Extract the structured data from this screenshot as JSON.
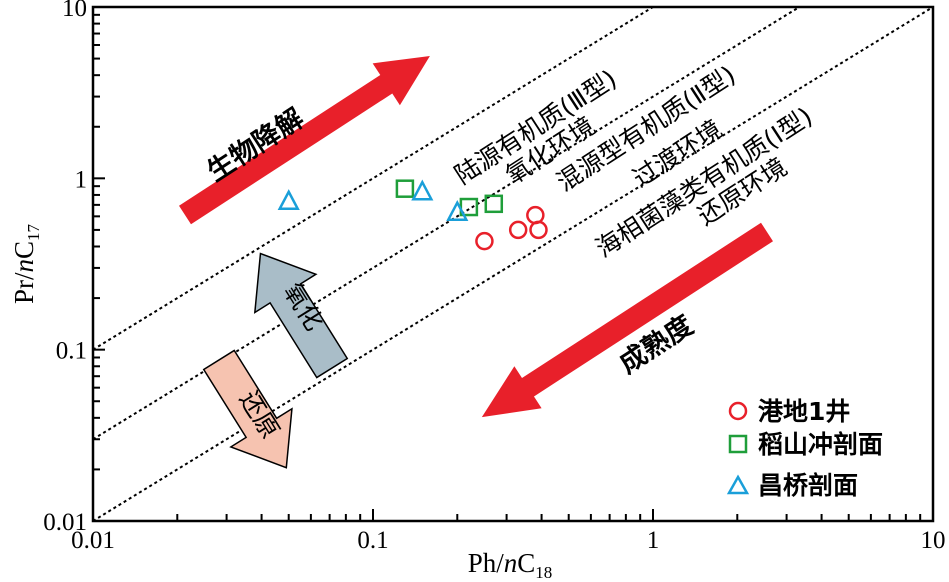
{
  "chart_data": {
    "type": "scatter",
    "xscale": "log",
    "yscale": "log",
    "xlim": [
      0.01,
      10
    ],
    "ylim": [
      0.01,
      10
    ],
    "xlabel": {
      "main": "Ph/",
      "ital": "n",
      "rest": "C",
      "sub": "18"
    },
    "ylabel": {
      "main": "Pr/",
      "ital": "n",
      "rest": "C",
      "sub": "17"
    },
    "x_ticks": [
      {
        "value": 0.01,
        "label": "0.01"
      },
      {
        "value": 0.1,
        "label": "0.1"
      },
      {
        "value": 1,
        "label": "1"
      },
      {
        "value": 10,
        "label": "10"
      }
    ],
    "y_ticks": [
      {
        "value": 0.01,
        "label": "0.01"
      },
      {
        "value": 0.1,
        "label": "0.1"
      },
      {
        "value": 1,
        "label": "1"
      },
      {
        "value": 10,
        "label": "10"
      }
    ],
    "grid": false,
    "legend_position": "bottom-right",
    "series": [
      {
        "name": "港地1井",
        "marker": "circle",
        "color": "#e8202a",
        "x": [
          0.25,
          0.33,
          0.38,
          0.39
        ],
        "y": [
          0.43,
          0.5,
          0.61,
          0.5
        ]
      },
      {
        "name": "稻山冲剖面",
        "marker": "square",
        "color": "#1f9e3a",
        "x": [
          0.13,
          0.22,
          0.27
        ],
        "y": [
          0.87,
          0.68,
          0.71
        ]
      },
      {
        "name": "昌桥剖面",
        "marker": "triangle",
        "color": "#1a9fd9",
        "x": [
          0.05,
          0.15,
          0.2
        ],
        "y": [
          0.73,
          0.83,
          0.63
        ]
      }
    ],
    "boundary_lines": [
      {
        "name": "upper-boundary",
        "points": [
          [
            0.01,
            0.1
          ],
          [
            10,
            100
          ]
        ]
      },
      {
        "name": "middle-boundary",
        "points": [
          [
            0.01,
            0.03
          ],
          [
            10,
            30
          ]
        ]
      },
      {
        "name": "lower-boundary",
        "points": [
          [
            0.01,
            0.01
          ],
          [
            10,
            10
          ]
        ]
      }
    ],
    "annotations": {
      "biodegradation": "生物降解",
      "terrestrial": "陆源有机质(Ⅲ型)",
      "oxidizing_env": "氧化环境",
      "mixed": "混源型有机质(Ⅱ型)",
      "transition_env": "过渡环境",
      "marine": "海相菌藻类有机质(Ⅰ型)",
      "reducing_env": "还原环境",
      "maturity": "成熟度",
      "oxidation_arrow": "氧化",
      "reduction_arrow": "还原"
    },
    "colors": {
      "red_arrow": "#e8202a",
      "oxidation_arrow_fill": "#a9bdc8",
      "reduction_arrow_fill": "#f6c3b0"
    }
  }
}
